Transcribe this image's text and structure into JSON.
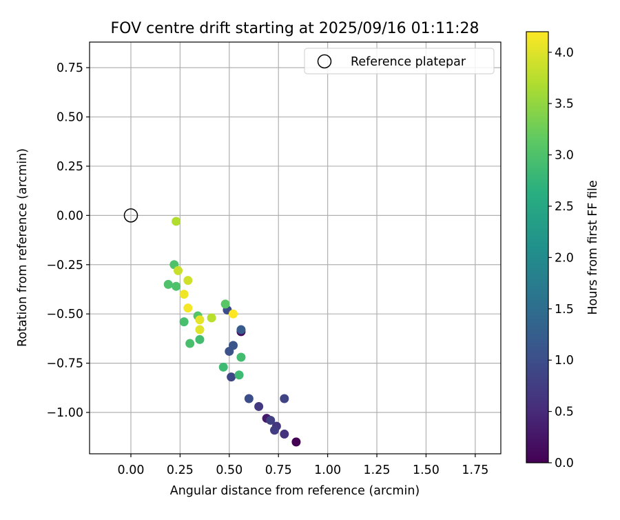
{
  "chart_data": {
    "type": "scatter",
    "title": "FOV centre drift starting at 2025/09/16 01:11:28",
    "xlabel": "Angular distance from reference (arcmin)",
    "ylabel": "Rotation from reference (arcmin)",
    "xlim": [
      -0.21,
      1.88
    ],
    "ylim": [
      -1.21,
      0.88
    ],
    "grid": true,
    "x_ticks": [
      0.0,
      0.25,
      0.5,
      0.75,
      1.0,
      1.25,
      1.5,
      1.75
    ],
    "x_tick_labels": [
      "0.00",
      "0.25",
      "0.50",
      "0.75",
      "1.00",
      "1.25",
      "1.50",
      "1.75"
    ],
    "y_ticks": [
      0.75,
      0.5,
      0.25,
      0.0,
      -0.25,
      -0.5,
      -0.75,
      -1.0
    ],
    "y_tick_labels": [
      "0.75",
      "0.50",
      "0.25",
      "0.00",
      "−0.25",
      "−0.50",
      "−0.75",
      "−1.00"
    ],
    "legend": {
      "placement": "top-right",
      "label": "Reference platepar"
    },
    "reference_point": {
      "x": 0.0,
      "y": 0.0
    },
    "colorbar": {
      "label": "Hours from first FF file",
      "colormap": "viridis",
      "range": [
        0.0,
        4.2
      ],
      "ticks": [
        0.0,
        0.5,
        1.0,
        1.5,
        2.0,
        2.5,
        3.0,
        3.5,
        4.0
      ],
      "tick_labels": [
        "0.0",
        "0.5",
        "1.0",
        "1.5",
        "2.0",
        "2.5",
        "3.0",
        "3.5",
        "4.0"
      ]
    },
    "points": [
      {
        "x": 0.84,
        "y": -1.15,
        "h": 0.0
      },
      {
        "x": 0.56,
        "y": -0.59,
        "h": 0.15
      },
      {
        "x": 0.69,
        "y": -1.03,
        "h": 0.3
      },
      {
        "x": 0.78,
        "y": -1.11,
        "h": 0.6
      },
      {
        "x": 0.74,
        "y": -1.07,
        "h": 0.65
      },
      {
        "x": 0.65,
        "y": -0.97,
        "h": 0.7
      },
      {
        "x": 0.73,
        "y": -1.09,
        "h": 0.75
      },
      {
        "x": 0.71,
        "y": -1.04,
        "h": 0.8
      },
      {
        "x": 0.78,
        "y": -0.93,
        "h": 0.85
      },
      {
        "x": 0.51,
        "y": -0.82,
        "h": 0.9
      },
      {
        "x": 0.49,
        "y": -0.48,
        "h": 0.95
      },
      {
        "x": 0.6,
        "y": -0.93,
        "h": 1.0
      },
      {
        "x": 0.5,
        "y": -0.69,
        "h": 1.05
      },
      {
        "x": 0.52,
        "y": -0.66,
        "h": 1.1
      },
      {
        "x": 0.56,
        "y": -0.58,
        "h": 1.2
      },
      {
        "x": 0.55,
        "y": -0.81,
        "h": 2.85
      },
      {
        "x": 0.47,
        "y": -0.77,
        "h": 2.85
      },
      {
        "x": 0.56,
        "y": -0.72,
        "h": 2.9
      },
      {
        "x": 0.35,
        "y": -0.63,
        "h": 2.9
      },
      {
        "x": 0.3,
        "y": -0.65,
        "h": 2.95
      },
      {
        "x": 0.27,
        "y": -0.54,
        "h": 2.95
      },
      {
        "x": 0.19,
        "y": -0.35,
        "h": 3.0
      },
      {
        "x": 0.22,
        "y": -0.25,
        "h": 3.0
      },
      {
        "x": 0.23,
        "y": -0.36,
        "h": 3.0
      },
      {
        "x": 0.34,
        "y": -0.51,
        "h": 3.05
      },
      {
        "x": 0.48,
        "y": -0.45,
        "h": 3.1
      },
      {
        "x": 0.23,
        "y": -0.03,
        "h": 3.7
      },
      {
        "x": 0.41,
        "y": -0.52,
        "h": 3.75
      },
      {
        "x": 0.24,
        "y": -0.28,
        "h": 3.85
      },
      {
        "x": 0.29,
        "y": -0.33,
        "h": 3.9
      },
      {
        "x": 0.35,
        "y": -0.58,
        "h": 4.0
      },
      {
        "x": 0.35,
        "y": -0.53,
        "h": 4.05
      },
      {
        "x": 0.27,
        "y": -0.4,
        "h": 4.1
      },
      {
        "x": 0.29,
        "y": -0.47,
        "h": 4.15
      },
      {
        "x": 0.52,
        "y": -0.5,
        "h": 4.2
      }
    ]
  }
}
